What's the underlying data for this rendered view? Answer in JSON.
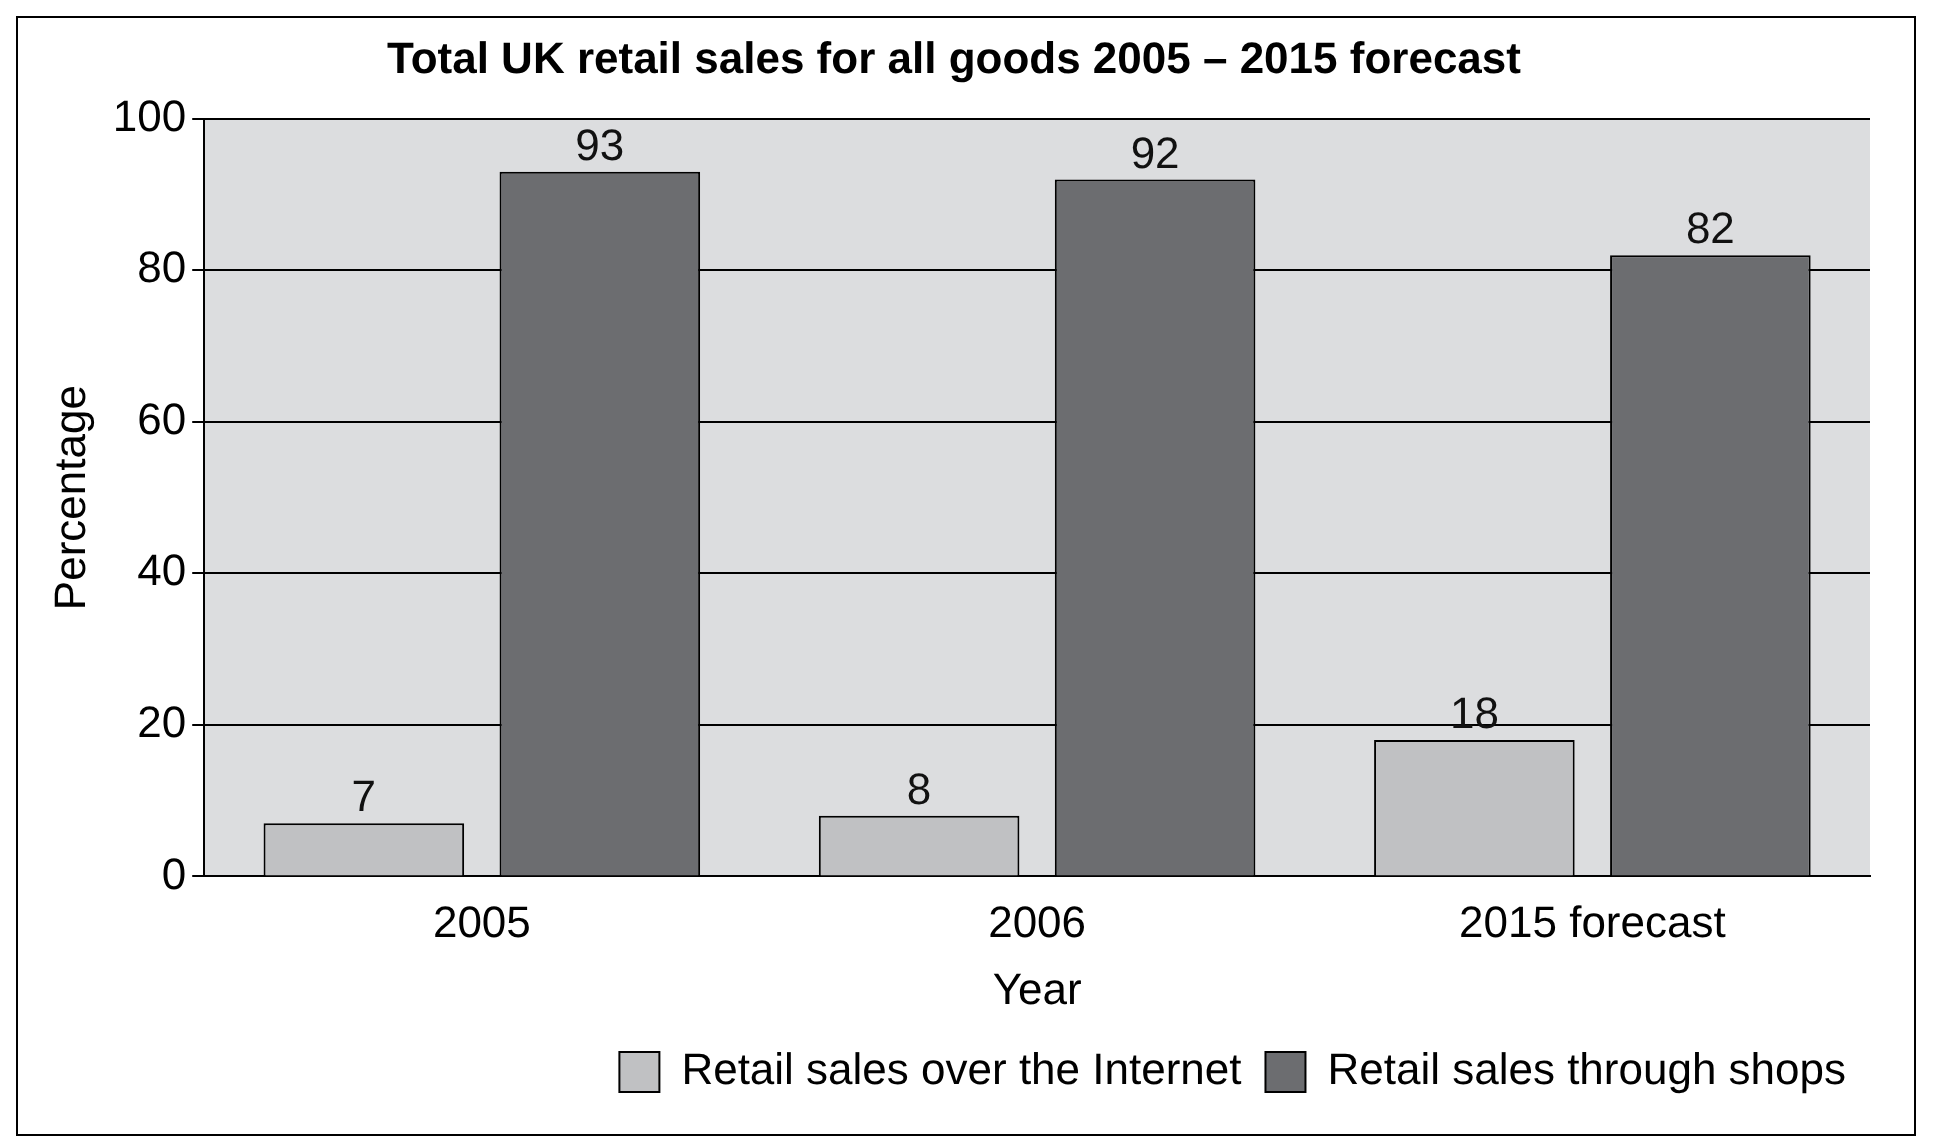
{
  "chart_data": {
    "type": "bar",
    "title": "Total UK retail sales for all goods 2005 – 2015 forecast",
    "xlabel": "Year",
    "ylabel": "Percentage",
    "categories": [
      "2005",
      "2006",
      "2015 forecast"
    ],
    "series": [
      {
        "name": "Retail sales over the Internet",
        "color": "#c0c1c3",
        "values": [
          7,
          8,
          18
        ]
      },
      {
        "name": "Retail sales through shops",
        "color": "#6c6d70",
        "values": [
          93,
          92,
          82
        ]
      }
    ],
    "ylim": [
      0,
      100
    ],
    "yticks": [
      0,
      20,
      40,
      60,
      80,
      100
    ],
    "grid": "y",
    "legend": "bottom",
    "data_labels": true
  }
}
